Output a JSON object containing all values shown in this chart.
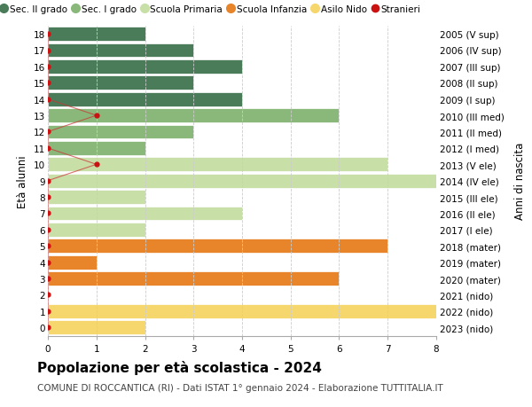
{
  "ages": [
    0,
    1,
    2,
    3,
    4,
    5,
    6,
    7,
    8,
    9,
    10,
    11,
    12,
    13,
    14,
    15,
    16,
    17,
    18
  ],
  "years": [
    "2023 (nido)",
    "2022 (nido)",
    "2021 (nido)",
    "2020 (mater)",
    "2019 (mater)",
    "2018 (mater)",
    "2017 (I ele)",
    "2016 (II ele)",
    "2015 (III ele)",
    "2014 (IV ele)",
    "2013 (V ele)",
    "2012 (I med)",
    "2011 (II med)",
    "2010 (III med)",
    "2009 (I sup)",
    "2008 (II sup)",
    "2007 (III sup)",
    "2006 (IV sup)",
    "2005 (V sup)"
  ],
  "bar_values": [
    2,
    8,
    0,
    6,
    1,
    7,
    2,
    4,
    2,
    8.5,
    7,
    2,
    3,
    6,
    4,
    3,
    4,
    3,
    2
  ],
  "bar_colors": [
    "#f5d76e",
    "#f5d76e",
    "#f5d76e",
    "#e8842a",
    "#e8842a",
    "#e8842a",
    "#c8dfa8",
    "#c8dfa8",
    "#c8dfa8",
    "#c8dfa8",
    "#c8dfa8",
    "#8ab87a",
    "#8ab87a",
    "#8ab87a",
    "#4a7c59",
    "#4a7c59",
    "#4a7c59",
    "#4a7c59",
    "#4a7c59"
  ],
  "stranieri_points": {
    "18": 0,
    "17": 0,
    "16": 0,
    "15": 0,
    "14": 0,
    "13": 1,
    "12": 0,
    "11": 0,
    "10": 1,
    "9": 0,
    "8": 0,
    "7": 0,
    "6": 0,
    "5": 0,
    "4": 0,
    "3": 0,
    "2": 0,
    "1": 0,
    "0": 0
  },
  "title": "Popolazione per età scolastica - 2024",
  "subtitle": "COMUNE DI ROCCANTICA (RI) - Dati ISTAT 1° gennaio 2024 - Elaborazione TUTTITALIA.IT",
  "ylabel": "Età alunni",
  "right_label": "Anni di nascita",
  "xlim": [
    0,
    8
  ],
  "ylim": [
    -0.5,
    18.5
  ],
  "legend_labels": [
    "Sec. II grado",
    "Sec. I grado",
    "Scuola Primaria",
    "Scuola Infanzia",
    "Asilo Nido",
    "Stranieri"
  ],
  "legend_colors": [
    "#4a7c59",
    "#8ab87a",
    "#c8dfa8",
    "#e8842a",
    "#f5d76e",
    "#cc1111"
  ],
  "bg_color": "#ffffff",
  "grid_color": "#cccccc",
  "bar_height": 0.85,
  "title_fontsize": 11,
  "subtitle_fontsize": 7.5,
  "tick_fontsize": 7.5,
  "label_fontsize": 8.5,
  "legend_fontsize": 7.5
}
